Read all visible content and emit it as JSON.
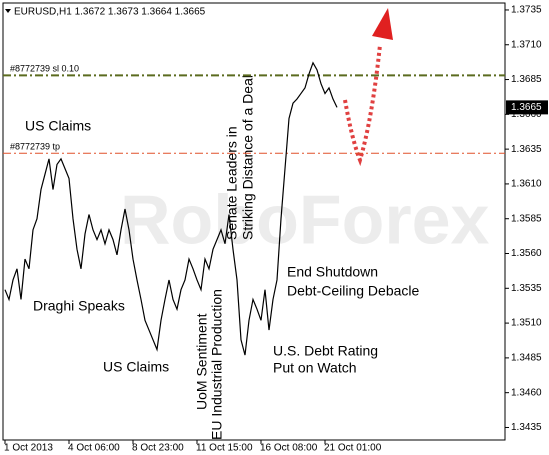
{
  "chart_data": {
    "type": "line",
    "title": "EURUSD,H1 1.3672 1.3673 1.3664 1.3665",
    "watermark": "RoboForex",
    "color": "#000000",
    "categories": [
      "1 Oct 2013",
      null,
      null,
      null,
      null,
      null,
      null,
      null,
      null,
      null,
      null,
      null,
      null,
      null,
      null,
      null,
      "4 Oct 06:00",
      null,
      null,
      null,
      null,
      null,
      null,
      null,
      null,
      null,
      null,
      null,
      null,
      null,
      null,
      null,
      "8 Oct 23:00",
      null,
      null,
      null,
      null,
      null,
      null,
      null,
      null,
      null,
      null,
      null,
      null,
      null,
      null,
      null,
      "11 Oct 15:00",
      null,
      null,
      null,
      null,
      null,
      null,
      null,
      null,
      null,
      null,
      null,
      null,
      null,
      null,
      null,
      "16 Oct 08:00",
      null,
      null,
      null,
      null,
      null,
      null,
      null,
      null,
      null,
      null,
      null,
      null,
      null,
      null,
      null,
      "21 Oct 01:00",
      null,
      null,
      null
    ],
    "values": [
      1.3534,
      1.3527,
      1.3541,
      1.3549,
      1.3527,
      1.3556,
      1.3549,
      1.3577,
      1.3585,
      1.3606,
      1.3617,
      1.3628,
      1.3606,
      1.3624,
      1.3628,
      1.3621,
      1.3614,
      1.3585,
      1.3563,
      1.3549,
      1.3574,
      1.3588,
      1.3577,
      1.357,
      1.3577,
      1.3567,
      1.3577,
      1.357,
      1.3559,
      1.3577,
      1.3592,
      1.3577,
      1.3556,
      1.3541,
      1.3527,
      1.3512,
      1.3505,
      1.3498,
      1.3491,
      1.3512,
      1.3527,
      1.3541,
      1.3527,
      1.352,
      1.3534,
      1.3541,
      1.3556,
      1.3549,
      1.3541,
      1.3534,
      1.3556,
      1.3549,
      1.3563,
      1.357,
      1.3577,
      1.3567,
      1.3588,
      1.3563,
      1.3541,
      1.3498,
      1.3487,
      1.3512,
      1.3527,
      1.352,
      1.3512,
      1.3534,
      1.3505,
      1.3527,
      1.3541,
      1.3585,
      1.3621,
      1.3657,
      1.3668,
      1.3671,
      1.3675,
      1.3679,
      1.3689,
      1.3697,
      1.3692,
      1.3682,
      1.3675,
      1.3679,
      1.3671,
      1.3665
    ],
    "ylim": [
      1.3426,
      1.374
    ],
    "yticks": [
      1.3435,
      {
        "value": 1.346,
        "label": "1.3460"
      },
      1.3485,
      {
        "value": 1.351,
        "label": "1.3510"
      },
      1.3535,
      {
        "value": 1.356,
        "label": "1.3560"
      },
      1.3585,
      {
        "value": 1.361,
        "label": "1.3610"
      },
      1.3635,
      {
        "value": 1.366,
        "label": "1.3660"
      },
      1.3685,
      {
        "value": 1.371,
        "label": "1.3710"
      },
      1.3735
    ],
    "last_price": 1.3665,
    "levels": [
      {
        "label": "#8772739 sl 0.10",
        "value": 1.3688,
        "color": "#5b6b1f"
      },
      {
        "label": "#8772739 tp",
        "value": 1.3632,
        "color": "#e0502a"
      }
    ],
    "annotations": [
      "US Claims",
      "Draghi Speaks",
      "US Claims",
      "UoM Sentiment",
      "EU Industrial Production",
      "Senate Leaders in",
      "Striking Distance of a Deal",
      "End Shutdown",
      "Debt-Ceiling Debacle",
      "U.S. Debt Rating",
      "Put on Watch"
    ]
  }
}
